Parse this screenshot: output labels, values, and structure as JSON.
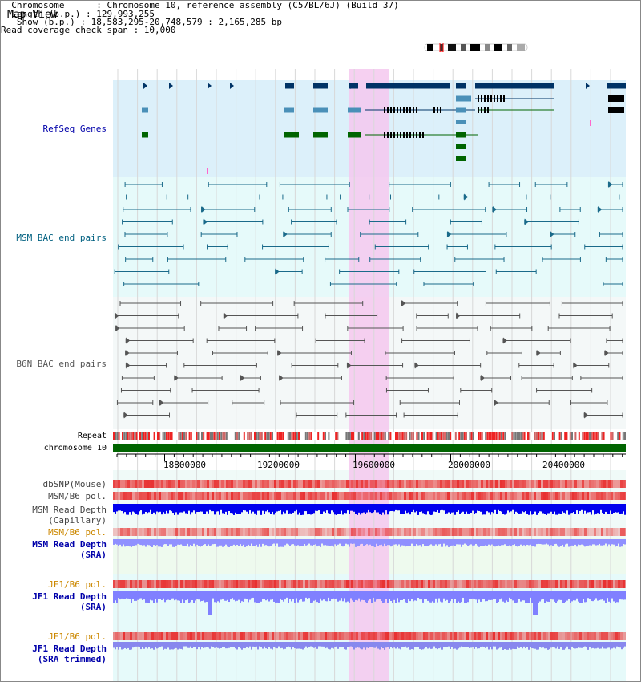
{
  "app": {
    "view_title": "Map View"
  },
  "header": {
    "lines": [
      "  Chromosome      : Chromosome 10, reference assembly (C57BL/6J) (Build 37)",
      "  Length (b.p.) : 129,993,255",
      "   Show (b.p.) : 18,583,295-20,748,579 : 2,165,285 bp",
      "Read coverage check span : 10,000"
    ]
  },
  "tracks": {
    "refseq": "RefSeq Genes",
    "msm_bac": "MSM BAC end pairs",
    "b6n_bac": "B6N BAC end pairs",
    "repeat": "Repeat",
    "chromosome": "chromosome 10",
    "dbsnp": "dbSNP(Mouse)",
    "msm_pol_1": "MSM/B6 pol.",
    "msm_depth_cap": "MSM Read Depth\n(Capillary)",
    "msm_pol_2": "MSM/B6 pol.",
    "msm_depth_sra": "MSM Read Depth\n(SRA)",
    "jf1_pol_1": "JF1/B6 pol.",
    "jf1_depth_sra": "JF1 Read Depth\n(SRA)",
    "jf1_pol_2": "JF1/B6 pol.",
    "jf1_depth_trim": "JF1 Read Depth\n(SRA trimmed)"
  },
  "ruler": {
    "ticks": [
      "18800000",
      "19200000",
      "19600000",
      "20000000",
      "20400000"
    ]
  },
  "colors": {
    "refseq_bg": "#dcf0fa",
    "bac_bg": "#e6fafa",
    "b6n_bg": "#f4f8f8",
    "highlight": "#f5c8ee",
    "gene_dark": "#003366",
    "gene_mid": "#4a90b8",
    "gene_green": "#006400",
    "msm_pair": "#1a6a8a",
    "b6n_pair": "#555555",
    "chrom_bar": "#006400",
    "snp_red": "#e83030",
    "depth_blue": "#0000ee",
    "depth_light": "#8080ff",
    "label_blue": "#0000aa",
    "label_teal": "#006080",
    "label_orange": "#cc8800"
  }
}
